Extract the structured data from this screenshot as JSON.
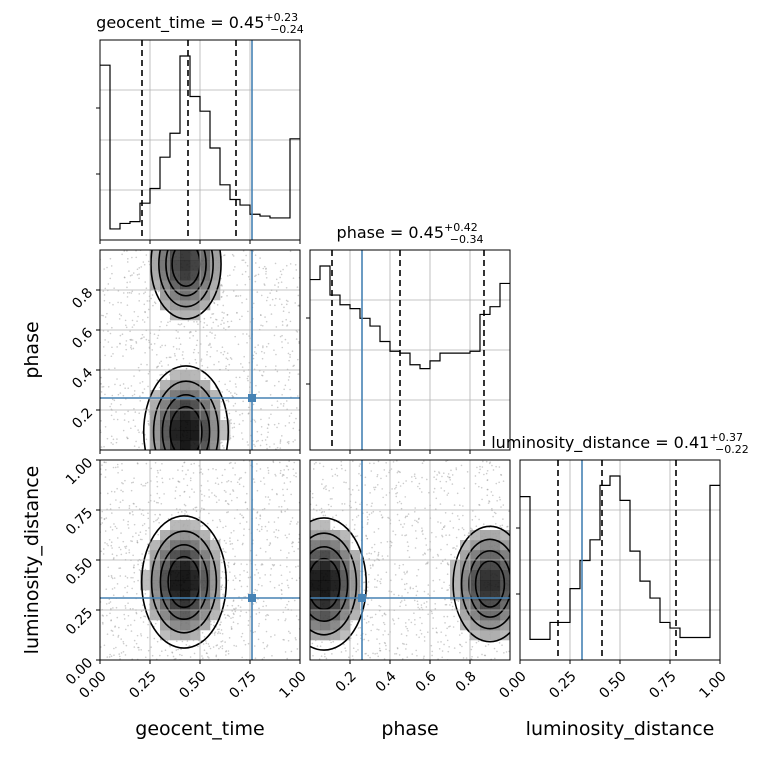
{
  "chart_data": {
    "type": "corner",
    "parameters": [
      {
        "name": "geocent_time",
        "xlabel": "geocent_time",
        "range": [
          0.0,
          1.0
        ],
        "ticks": [
          0.0,
          0.25,
          0.5,
          0.75,
          1.0
        ],
        "tick_labels": [
          "0.00",
          "0.25",
          "0.50",
          "0.75",
          "1.00"
        ],
        "title": {
          "main": "geocent_time = 0.45",
          "sup": "+0.23",
          "sub": "−0.24"
        },
        "quantiles": [
          0.21,
          0.44,
          0.68
        ],
        "truth": 0.76,
        "hist_bins": 20,
        "hist_values": [
          0.95,
          0.06,
          0.09,
          0.1,
          0.2,
          0.28,
          0.45,
          0.58,
          1.0,
          0.78,
          0.7,
          0.5,
          0.3,
          0.22,
          0.19,
          0.14,
          0.13,
          0.12,
          0.12,
          0.55
        ]
      },
      {
        "name": "phase",
        "xlabel": "phase",
        "range": [
          0.0,
          1.0
        ],
        "ticks": [
          0.2,
          0.4,
          0.6,
          0.8
        ],
        "tick_labels": [
          "0.2",
          "0.4",
          "0.6",
          "0.8"
        ],
        "title": {
          "main": "phase = 0.45",
          "sup": "+0.42",
          "sub": "−0.34"
        },
        "quantiles": [
          0.11,
          0.45,
          0.87
        ],
        "truth": 0.26,
        "hist_bins": 20,
        "hist_values": [
          0.88,
          0.95,
          0.8,
          0.75,
          0.73,
          0.68,
          0.64,
          0.56,
          0.51,
          0.5,
          0.44,
          0.42,
          0.46,
          0.5,
          0.5,
          0.5,
          0.51,
          0.7,
          0.74,
          0.86
        ]
      },
      {
        "name": "luminosity_distance",
        "xlabel": "luminosity_distance",
        "range": [
          0.0,
          1.0
        ],
        "ticks": [
          0.0,
          0.25,
          0.5,
          0.75,
          1.0
        ],
        "tick_labels": [
          "0.00",
          "0.25",
          "0.50",
          "0.75",
          "1.00"
        ],
        "title": {
          "main": "luminosity_distance = 0.41",
          "sup": "+0.37",
          "sub": "−0.22"
        },
        "quantiles": [
          0.19,
          0.41,
          0.78
        ],
        "truth": 0.31,
        "hist_bins": 20,
        "hist_values": [
          0.87,
          0.11,
          0.11,
          0.2,
          0.2,
          0.38,
          0.53,
          0.64,
          0.93,
          0.98,
          0.85,
          0.58,
          0.42,
          0.33,
          0.2,
          0.17,
          0.12,
          0.12,
          0.12,
          0.93
        ]
      }
    ],
    "ylabels": {
      "row1": "phase",
      "row2": "luminosity_distance"
    },
    "y_tick_labels": {
      "phase": [
        "0.2",
        "0.4",
        "0.6",
        "0.8"
      ],
      "luminosity_distance": [
        "0.00",
        "0.25",
        "0.50",
        "0.75",
        "1.00"
      ]
    },
    "joint_peaks": {
      "geocent_time_vs_phase": [
        {
          "x": 0.43,
          "y": 0.09,
          "strength": 1.0
        },
        {
          "x": 0.43,
          "y": 0.93,
          "strength": 0.8
        }
      ],
      "geocent_time_vs_luminosity_distance": [
        {
          "x": 0.42,
          "y": 0.39,
          "strength": 1.0
        }
      ],
      "phase_vs_luminosity_distance": [
        {
          "x": 0.07,
          "y": 0.38,
          "strength": 1.0
        },
        {
          "x": 0.9,
          "y": 0.38,
          "strength": 0.85
        }
      ]
    },
    "grid": true,
    "colors": {
      "truth_line": "#4682b4",
      "hist_line": "#000000",
      "quantile_line": "#000000",
      "grid": "#b0b0b0",
      "scatter": "#9a9a9a",
      "density_max": "#000000"
    }
  }
}
